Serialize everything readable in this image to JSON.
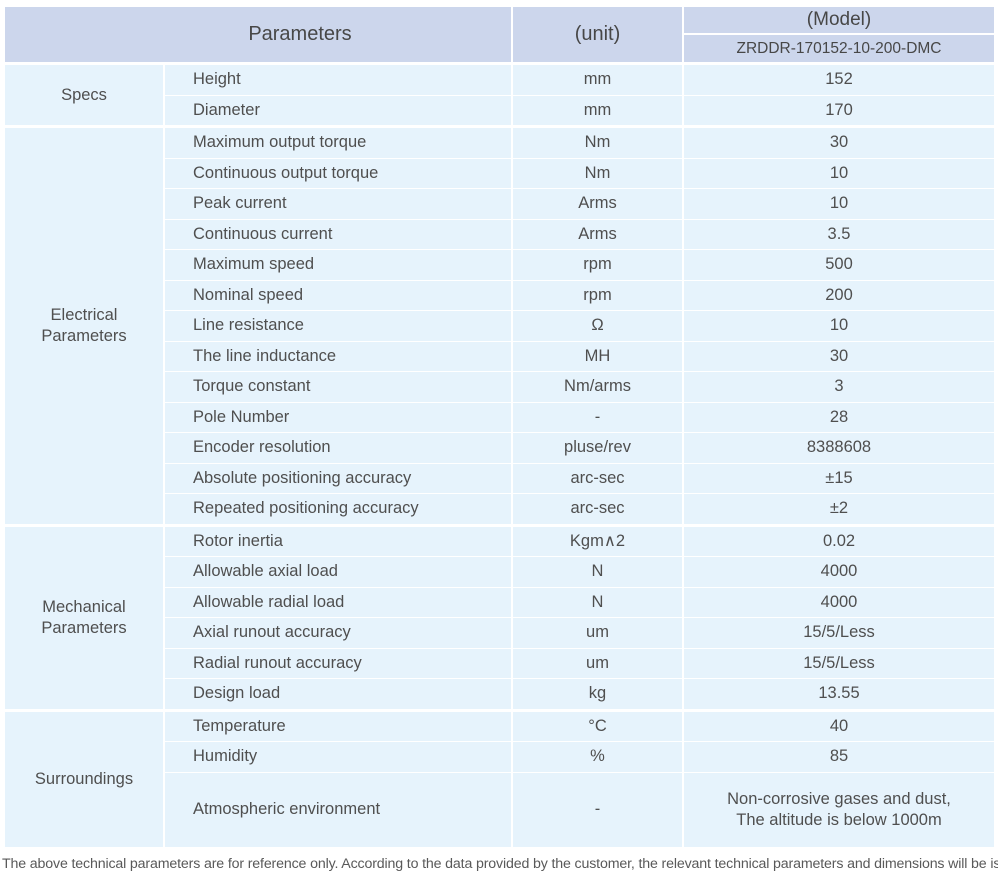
{
  "table": {
    "header": {
      "parameters": "Parameters",
      "unit": "(unit)",
      "model": "(Model)",
      "model_number": "ZRDDR-170152-10-200-DMC"
    },
    "groups": [
      {
        "label": "Specs",
        "rows": [
          {
            "param": "Height",
            "unit": "mm",
            "value": "152"
          },
          {
            "param": "Diameter",
            "unit": "mm",
            "value": "170"
          }
        ]
      },
      {
        "label": "Electrical Parameters",
        "rows": [
          {
            "param": "Maximum output torque",
            "unit": "Nm",
            "value": "30"
          },
          {
            "param": "Continuous output torque",
            "unit": "Nm",
            "value": "10"
          },
          {
            "param": "Peak current",
            "unit": "Arms",
            "value": "10"
          },
          {
            "param": "Continuous current",
            "unit": "Arms",
            "value": "3.5"
          },
          {
            "param": "Maximum speed",
            "unit": "rpm",
            "value": "500"
          },
          {
            "param": "Nominal speed",
            "unit": "rpm",
            "value": "200"
          },
          {
            "param": "Line resistance",
            "unit": "Ω",
            "value": "10"
          },
          {
            "param": "The line inductance",
            "unit": "MH",
            "value": "30"
          },
          {
            "param": "Torque constant",
            "unit": "Nm/arms",
            "value": "3"
          },
          {
            "param": "Pole Number",
            "unit": "-",
            "value": "28"
          },
          {
            "param": "Encoder resolution",
            "unit": "pluse/rev",
            "value": "8388608"
          },
          {
            "param": "Absolute positioning accuracy",
            "unit": "arc-sec",
            "value": "±15"
          },
          {
            "param": "Repeated positioning accuracy",
            "unit": "arc-sec",
            "value": "±2"
          }
        ]
      },
      {
        "label": "Mechanical Parameters",
        "rows": [
          {
            "param": "Rotor inertia",
            "unit": "Kgm∧2",
            "value": "0.02"
          },
          {
            "param": "Allowable axial load",
            "unit": "N",
            "value": "4000"
          },
          {
            "param": "Allowable radial load",
            "unit": "N",
            "value": "4000"
          },
          {
            "param": "Axial runout accuracy",
            "unit": "um",
            "value": "15/5/Less"
          },
          {
            "param": "Radial runout accuracy",
            "unit": "um",
            "value": "15/5/Less"
          },
          {
            "param": "Design load",
            "unit": "kg",
            "value": "13.55"
          }
        ]
      },
      {
        "label": "Surroundings",
        "rows": [
          {
            "param": "Temperature",
            "unit": "°C",
            "value": "40"
          },
          {
            "param": "Humidity",
            "unit": "%",
            "value": "85"
          },
          {
            "param": "Atmospheric environment",
            "unit": "-",
            "value": "Non-corrosive gases and dust,\nThe altitude is below 1000m"
          }
        ]
      }
    ]
  },
  "footer": {
    "note": "The above technical parameters are for reference only. According to the data provided by the customer, the relevant technical parameters and dimensions will be issued."
  },
  "colors": {
    "header_bg": "#ccd6ec",
    "row_bg": "#e6f3fc",
    "text": "#4f4f4f",
    "footer_text": "#595959",
    "separator": "#ffffff"
  }
}
